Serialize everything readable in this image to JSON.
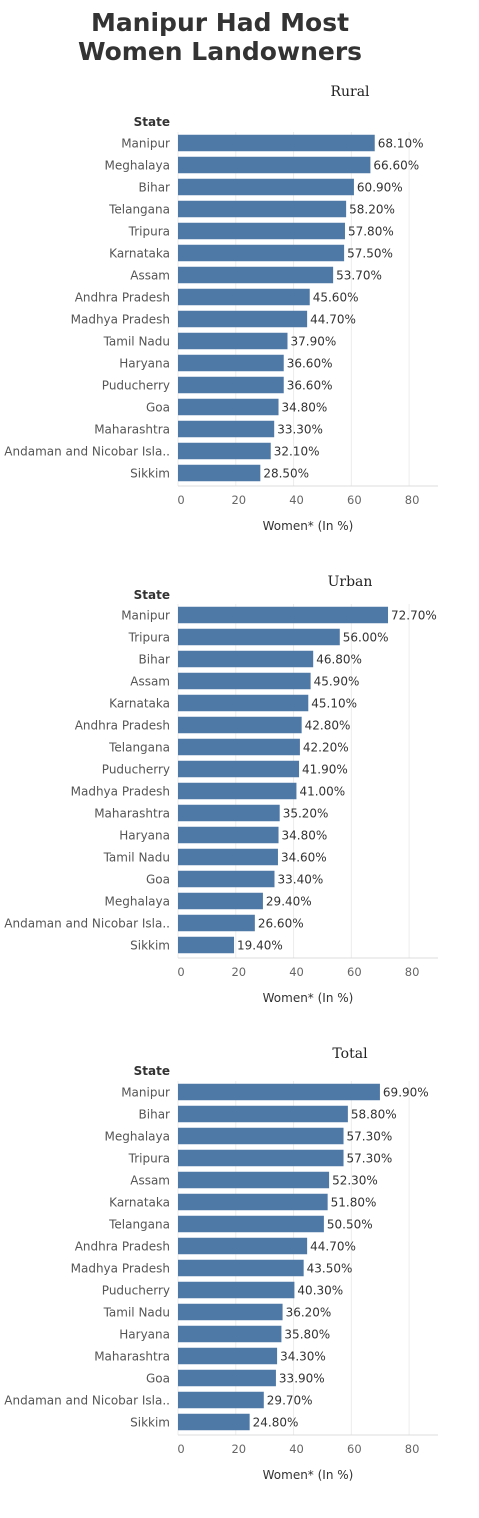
{
  "title_lines": [
    "Manipur Had Most",
    "Women Landowners"
  ],
  "bar_color": "#4e79a7",
  "chart_data": [
    {
      "type": "bar",
      "orientation": "horizontal",
      "title": "Rural",
      "category_header": "State",
      "xlabel": "Women* (In %)",
      "xlim": [
        0,
        90
      ],
      "xticks": [
        0,
        20,
        40,
        60,
        80
      ],
      "grid": true,
      "categories": [
        "Manipur",
        "Meghalaya",
        "Bihar",
        "Telangana",
        "Tripura",
        "Karnataka",
        "Assam",
        "Andhra Pradesh",
        "Madhya Pradesh",
        "Tamil Nadu",
        "Haryana",
        "Puducherry",
        "Goa",
        "Maharashtra",
        "Andaman and Nicobar Isla..",
        "Sikkim"
      ],
      "values": [
        68.1,
        66.6,
        60.9,
        58.2,
        57.8,
        57.5,
        53.7,
        45.6,
        44.7,
        37.9,
        36.6,
        36.6,
        34.8,
        33.3,
        32.1,
        28.5
      ],
      "value_labels": [
        "68.10%",
        "66.60%",
        "60.90%",
        "58.20%",
        "57.80%",
        "57.50%",
        "53.70%",
        "45.60%",
        "44.70%",
        "37.90%",
        "36.60%",
        "36.60%",
        "34.80%",
        "33.30%",
        "32.10%",
        "28.50%"
      ]
    },
    {
      "type": "bar",
      "orientation": "horizontal",
      "title": "Urban",
      "category_header": "State",
      "xlabel": "Women* (In %)",
      "xlim": [
        0,
        90
      ],
      "xticks": [
        0,
        20,
        40,
        60,
        80
      ],
      "grid": true,
      "categories": [
        "Manipur",
        "Tripura",
        "Bihar",
        "Assam",
        "Karnataka",
        "Andhra Pradesh",
        "Telangana",
        "Puducherry",
        "Madhya Pradesh",
        "Maharashtra",
        "Haryana",
        "Tamil Nadu",
        "Goa",
        "Meghalaya",
        "Andaman and Nicobar Isla..",
        "Sikkim"
      ],
      "values": [
        72.7,
        56.0,
        46.8,
        45.9,
        45.1,
        42.8,
        42.2,
        41.9,
        41.0,
        35.2,
        34.8,
        34.6,
        33.4,
        29.4,
        26.6,
        19.4
      ],
      "value_labels": [
        "72.70%",
        "56.00%",
        "46.80%",
        "45.90%",
        "45.10%",
        "42.80%",
        "42.20%",
        "41.90%",
        "41.00%",
        "35.20%",
        "34.80%",
        "34.60%",
        "33.40%",
        "29.40%",
        "26.60%",
        "19.40%"
      ]
    },
    {
      "type": "bar",
      "orientation": "horizontal",
      "title": "Total",
      "category_header": "State",
      "xlabel": "Women* (In %)",
      "xlim": [
        0,
        90
      ],
      "xticks": [
        0,
        20,
        40,
        60,
        80
      ],
      "grid": true,
      "categories": [
        "Manipur",
        "Bihar",
        "Meghalaya",
        "Tripura",
        "Assam",
        "Karnataka",
        "Telangana",
        "Andhra Pradesh",
        "Madhya Pradesh",
        "Puducherry",
        "Tamil Nadu",
        "Haryana",
        "Maharashtra",
        "Goa",
        "Andaman and Nicobar Isla..",
        "Sikkim"
      ],
      "values": [
        69.9,
        58.8,
        57.3,
        57.3,
        52.3,
        51.8,
        50.5,
        44.7,
        43.5,
        40.3,
        36.2,
        35.8,
        34.3,
        33.9,
        29.7,
        24.8
      ],
      "value_labels": [
        "69.90%",
        "58.80%",
        "57.30%",
        "57.30%",
        "52.30%",
        "51.80%",
        "50.50%",
        "44.70%",
        "43.50%",
        "40.30%",
        "36.20%",
        "35.80%",
        "34.30%",
        "33.90%",
        "29.70%",
        "24.80%"
      ]
    }
  ]
}
